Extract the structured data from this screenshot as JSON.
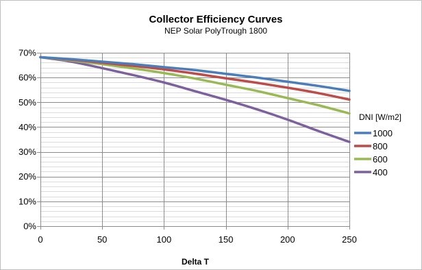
{
  "chart_data": {
    "type": "line",
    "title": "Collector Efficiency Curves",
    "subtitle": "NEP Solar PolyTrough  1800",
    "xlabel": "Delta T",
    "ylabel": "",
    "xlim": [
      0,
      250
    ],
    "ylim": [
      0,
      0.7
    ],
    "x_ticks": [
      0,
      50,
      100,
      150,
      200,
      250
    ],
    "x_tick_labels": [
      "0",
      "50",
      "100",
      "150",
      "200",
      "250"
    ],
    "y_ticks": [
      0,
      0.1,
      0.2,
      0.3,
      0.4,
      0.5,
      0.6,
      0.7
    ],
    "y_tick_labels": [
      "0%",
      "10%",
      "20%",
      "30%",
      "40%",
      "50%",
      "60%",
      "70%"
    ],
    "y_minor_step": 0.02,
    "grid": true,
    "legend": {
      "title": "DNI [W/m2]",
      "placement": "right"
    },
    "x": [
      0,
      25,
      50,
      75,
      100,
      125,
      150,
      175,
      200,
      225,
      250
    ],
    "series": [
      {
        "name": "1000",
        "color": "#4a7ebb",
        "values": [
          0.682,
          0.674,
          0.664,
          0.654,
          0.642,
          0.63,
          0.615,
          0.6,
          0.583,
          0.566,
          0.546
        ]
      },
      {
        "name": "800",
        "color": "#be4b48",
        "values": [
          0.682,
          0.672,
          0.66,
          0.647,
          0.633,
          0.616,
          0.597,
          0.579,
          0.559,
          0.537,
          0.511
        ]
      },
      {
        "name": "600",
        "color": "#98b954",
        "values": [
          0.682,
          0.669,
          0.654,
          0.637,
          0.618,
          0.596,
          0.571,
          0.546,
          0.517,
          0.488,
          0.455
        ]
      },
      {
        "name": "400",
        "color": "#7d60a0",
        "values": [
          0.682,
          0.664,
          0.638,
          0.61,
          0.58,
          0.545,
          0.51,
          0.472,
          0.43,
          0.384,
          0.34
        ]
      }
    ]
  }
}
